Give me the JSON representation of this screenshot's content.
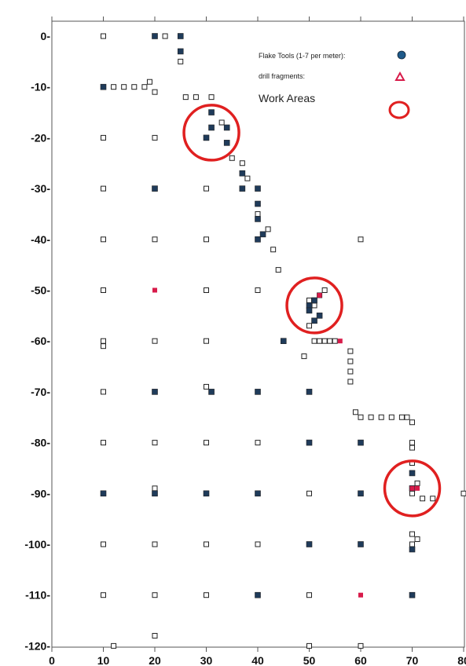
{
  "chart_data": {
    "type": "scatter",
    "title": "",
    "xlabel": "",
    "ylabel": "",
    "xlim": [
      0,
      80
    ],
    "ylim": [
      -120,
      0
    ],
    "x_ticks": [
      0,
      10,
      20,
      30,
      40,
      50,
      60,
      70,
      80
    ],
    "y_ticks": [
      0,
      -10,
      -20,
      -30,
      -40,
      -50,
      -60,
      -70,
      -80,
      -90,
      -100,
      -110,
      -120
    ],
    "x_tick_labels": [
      "0",
      "10",
      "20",
      "30",
      "40",
      "50",
      "60",
      "70",
      "80"
    ],
    "y_tick_labels": [
      "0-",
      "-10-",
      "-20-",
      "-30-",
      "-40-",
      "-50-",
      "-60-",
      "-70-",
      "-80-",
      "-90-",
      "-100-",
      "-110-",
      "-120-"
    ],
    "grid": false,
    "legend_position": "top-right",
    "legend": [
      {
        "label": "Flake Tools (1-7 per meter):",
        "symbol": "filled-circle",
        "color": "#1f5a8a"
      },
      {
        "label": "drill fragments:",
        "symbol": "triangle",
        "color": "#d81b4a"
      },
      {
        "label": "Work Areas",
        "symbol": "open-circle",
        "color": "#e02020"
      }
    ],
    "series": [
      {
        "name": "Excavation units",
        "marker": "open-square",
        "color": "#222222",
        "points": [
          [
            10,
            0
          ],
          [
            10,
            -10
          ],
          [
            10,
            -20
          ],
          [
            10,
            -30
          ],
          [
            10,
            -40
          ],
          [
            10,
            -50
          ],
          [
            10,
            -60
          ],
          [
            10,
            -61
          ],
          [
            10,
            -70
          ],
          [
            10,
            -80
          ],
          [
            10,
            -90
          ],
          [
            10,
            -100
          ],
          [
            10,
            -110
          ],
          [
            20,
            -20
          ],
          [
            20,
            -40
          ],
          [
            20,
            -60
          ],
          [
            20,
            -80
          ],
          [
            20,
            -89
          ],
          [
            20,
            -100
          ],
          [
            20,
            -110
          ],
          [
            20,
            -118
          ],
          [
            30,
            -30
          ],
          [
            30,
            -40
          ],
          [
            30,
            -50
          ],
          [
            30,
            -60
          ],
          [
            30,
            -80
          ],
          [
            30,
            -90
          ],
          [
            30,
            -100
          ],
          [
            30,
            -110
          ],
          [
            40,
            -50
          ],
          [
            40,
            -80
          ],
          [
            40,
            -100
          ],
          [
            50,
            -90
          ],
          [
            50,
            -100
          ],
          [
            50,
            -110
          ],
          [
            50,
            -120
          ],
          [
            60,
            -40
          ],
          [
            60,
            -90
          ],
          [
            60,
            -100
          ],
          [
            60,
            -120
          ],
          [
            70,
            -90
          ],
          [
            70,
            -100
          ],
          [
            70,
            -110
          ],
          [
            80,
            -90
          ],
          [
            12,
            -10
          ],
          [
            14,
            -10
          ],
          [
            16,
            -10
          ],
          [
            18,
            -10
          ],
          [
            19,
            -9
          ],
          [
            20,
            -11
          ],
          [
            22,
            0
          ],
          [
            25,
            -5
          ],
          [
            26,
            -12
          ],
          [
            28,
            -12
          ],
          [
            31,
            -12
          ],
          [
            33,
            -17
          ],
          [
            35,
            -24
          ],
          [
            37,
            -25
          ],
          [
            38,
            -28
          ],
          [
            40,
            -35
          ],
          [
            42,
            -38
          ],
          [
            43,
            -42
          ],
          [
            44,
            -46
          ],
          [
            50,
            -52
          ],
          [
            51,
            -53
          ],
          [
            52,
            -51
          ],
          [
            53,
            -50
          ],
          [
            50,
            -57
          ],
          [
            51,
            -60
          ],
          [
            52,
            -60
          ],
          [
            53,
            -60
          ],
          [
            54,
            -60
          ],
          [
            55,
            -60
          ],
          [
            49,
            -63
          ],
          [
            58,
            -62
          ],
          [
            58,
            -64
          ],
          [
            58,
            -66
          ],
          [
            58,
            -68
          ],
          [
            59,
            -74
          ],
          [
            60,
            -75
          ],
          [
            62,
            -75
          ],
          [
            64,
            -75
          ],
          [
            66,
            -75
          ],
          [
            68,
            -75
          ],
          [
            69,
            -75
          ],
          [
            70,
            -76
          ],
          [
            70,
            -80
          ],
          [
            70,
            -81
          ],
          [
            70,
            -84
          ],
          [
            71,
            -88
          ],
          [
            72,
            -91
          ],
          [
            74,
            -91
          ],
          [
            70,
            -98
          ],
          [
            71,
            -99
          ],
          [
            30,
            -69
          ],
          [
            31,
            -70
          ],
          [
            12,
            -120
          ]
        ]
      },
      {
        "name": "Flake Tools",
        "marker": "filled-circle",
        "color": "#1f3b5a",
        "points": [
          [
            10,
            -10
          ],
          [
            20,
            0
          ],
          [
            25,
            0
          ],
          [
            25,
            -3
          ],
          [
            30,
            -20
          ],
          [
            31,
            -18
          ],
          [
            31,
            -15
          ],
          [
            34,
            -18
          ],
          [
            34,
            -21
          ],
          [
            37,
            -27
          ],
          [
            37,
            -30
          ],
          [
            40,
            -33
          ],
          [
            40,
            -36
          ],
          [
            41,
            -39
          ],
          [
            40,
            -40
          ],
          [
            40,
            -30
          ],
          [
            20,
            -30
          ],
          [
            20,
            -70
          ],
          [
            31,
            -70
          ],
          [
            40,
            -70
          ],
          [
            40,
            -90
          ],
          [
            40,
            -110
          ],
          [
            50,
            -70
          ],
          [
            50,
            -80
          ],
          [
            50,
            -53
          ],
          [
            51,
            -52
          ],
          [
            50,
            -54
          ],
          [
            51,
            -56
          ],
          [
            52,
            -55
          ],
          [
            45,
            -60
          ],
          [
            60,
            -80
          ],
          [
            60,
            -90
          ],
          [
            60,
            -100
          ],
          [
            70,
            -86
          ],
          [
            70,
            -89
          ],
          [
            70,
            -101
          ],
          [
            70,
            -110
          ],
          [
            10,
            -90
          ],
          [
            20,
            -90
          ],
          [
            30,
            -90
          ],
          [
            50,
            -100
          ]
        ]
      },
      {
        "name": "drill fragments",
        "marker": "triangle",
        "color": "#d81b4a",
        "points": [
          [
            20,
            -50
          ],
          [
            52,
            -51
          ],
          [
            56,
            -60
          ],
          [
            71,
            -89
          ],
          [
            70,
            -89
          ],
          [
            60,
            -110
          ]
        ]
      },
      {
        "name": "Work Areas",
        "marker": "open-circle",
        "color": "#e02020",
        "points": [
          [
            31,
            -19
          ],
          [
            51,
            -53
          ],
          [
            70,
            -89
          ]
        ]
      }
    ]
  }
}
